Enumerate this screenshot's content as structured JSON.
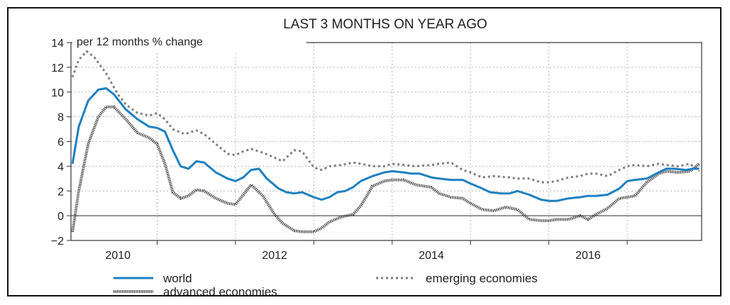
{
  "chart_data": {
    "type": "line",
    "title": "LAST 3 MONTHS ON YEAR AGO",
    "ylabel": "per 12 months % change",
    "xlabel": "",
    "ylim": [
      -2,
      14
    ],
    "yticks": [
      14,
      12,
      10,
      8,
      6,
      4,
      2,
      0,
      -2
    ],
    "ytick_labels": [
      "14",
      "12",
      "10",
      "8",
      "6",
      "4",
      "2",
      "0",
      "−2"
    ],
    "xlim": [
      2009.9,
      2017.95
    ],
    "xtick_labels": [
      "2010",
      "2012",
      "2014",
      "2016"
    ],
    "xtick_positions": [
      2010.5,
      2012.5,
      2014.5,
      2016.5
    ],
    "year_boundaries": [
      2011,
      2012,
      2013,
      2014,
      2015,
      2016,
      2017
    ],
    "grid": true,
    "zero_line": true,
    "legend_position": "bottom",
    "series": [
      {
        "name": "world",
        "style": "solid",
        "color": "#1f7fc1",
        "x": [
          2009.92,
          2010.0,
          2010.12,
          2010.25,
          2010.35,
          2010.45,
          2010.6,
          2010.75,
          2010.9,
          2011.0,
          2011.1,
          2011.2,
          2011.3,
          2011.4,
          2011.5,
          2011.6,
          2011.75,
          2011.9,
          2012.0,
          2012.1,
          2012.2,
          2012.3,
          2012.4,
          2012.55,
          2012.65,
          2012.75,
          2012.85,
          2013.0,
          2013.1,
          2013.2,
          2013.3,
          2013.4,
          2013.5,
          2013.6,
          2013.75,
          2013.9,
          2014.0,
          2014.15,
          2014.25,
          2014.35,
          2014.5,
          2014.6,
          2014.75,
          2014.9,
          2015.0,
          2015.15,
          2015.25,
          2015.4,
          2015.5,
          2015.6,
          2015.75,
          2015.9,
          2016.0,
          2016.1,
          2016.25,
          2016.4,
          2016.5,
          2016.6,
          2016.75,
          2016.9,
          2017.0,
          2017.1,
          2017.25,
          2017.4,
          2017.5,
          2017.6,
          2017.75,
          2017.85,
          2017.92
        ],
        "y": [
          4.2,
          7.2,
          9.3,
          10.2,
          10.3,
          9.8,
          8.6,
          7.8,
          7.2,
          7.1,
          6.8,
          5.3,
          4.0,
          3.8,
          4.4,
          4.3,
          3.5,
          3.0,
          2.8,
          3.1,
          3.7,
          3.8,
          3.0,
          2.2,
          1.9,
          1.8,
          1.9,
          1.5,
          1.3,
          1.5,
          1.9,
          2.0,
          2.3,
          2.8,
          3.2,
          3.5,
          3.6,
          3.5,
          3.4,
          3.4,
          3.1,
          3.0,
          2.9,
          2.9,
          2.6,
          2.2,
          1.9,
          1.8,
          1.8,
          2.0,
          1.7,
          1.3,
          1.2,
          1.2,
          1.4,
          1.5,
          1.6,
          1.6,
          1.7,
          2.2,
          2.8,
          2.9,
          3.0,
          3.5,
          3.8,
          3.8,
          3.7,
          3.8,
          3.8
        ]
      },
      {
        "name": "emerging economies",
        "style": "dashed",
        "color": "#7f7f7f",
        "x": [
          2009.92,
          2010.0,
          2010.1,
          2010.2,
          2010.35,
          2010.5,
          2010.6,
          2010.75,
          2010.9,
          2011.0,
          2011.1,
          2011.2,
          2011.35,
          2011.5,
          2011.6,
          2011.75,
          2011.9,
          2012.0,
          2012.1,
          2012.2,
          2012.35,
          2012.5,
          2012.6,
          2012.75,
          2012.85,
          2013.0,
          2013.1,
          2013.2,
          2013.35,
          2013.5,
          2013.6,
          2013.75,
          2013.9,
          2014.0,
          2014.15,
          2014.3,
          2014.5,
          2014.6,
          2014.75,
          2014.9,
          2015.0,
          2015.15,
          2015.3,
          2015.5,
          2015.6,
          2015.75,
          2015.9,
          2016.0,
          2016.1,
          2016.25,
          2016.4,
          2016.5,
          2016.6,
          2016.75,
          2016.9,
          2017.0,
          2017.1,
          2017.25,
          2017.4,
          2017.5,
          2017.65,
          2017.8,
          2017.92
        ],
        "y": [
          11.2,
          12.6,
          13.3,
          12.8,
          11.5,
          9.8,
          9.0,
          8.3,
          8.1,
          8.3,
          7.8,
          7.0,
          6.6,
          6.9,
          6.6,
          5.8,
          5.0,
          4.9,
          5.2,
          5.4,
          5.1,
          4.7,
          4.4,
          5.3,
          5.2,
          3.9,
          3.7,
          4.0,
          4.1,
          4.3,
          4.2,
          4.0,
          4.0,
          4.2,
          4.1,
          4.0,
          4.1,
          4.2,
          4.3,
          3.7,
          3.5,
          3.1,
          3.2,
          3.1,
          3.0,
          3.0,
          2.7,
          2.7,
          2.8,
          3.1,
          3.2,
          3.4,
          3.4,
          3.2,
          3.7,
          4.0,
          4.1,
          4.0,
          4.2,
          4.1,
          4.0,
          4.2,
          3.6
        ]
      },
      {
        "name": "advanced economies",
        "style": "dotted",
        "color": "#333333",
        "x": [
          2009.92,
          2010.0,
          2010.12,
          2010.25,
          2010.35,
          2010.45,
          2010.6,
          2010.75,
          2010.9,
          2011.0,
          2011.1,
          2011.2,
          2011.3,
          2011.4,
          2011.5,
          2011.6,
          2011.75,
          2011.9,
          2012.0,
          2012.1,
          2012.2,
          2012.35,
          2012.5,
          2012.6,
          2012.75,
          2012.85,
          2013.0,
          2013.1,
          2013.2,
          2013.35,
          2013.5,
          2013.6,
          2013.75,
          2013.9,
          2014.0,
          2014.15,
          2014.3,
          2014.5,
          2014.6,
          2014.75,
          2014.9,
          2015.0,
          2015.15,
          2015.3,
          2015.45,
          2015.6,
          2015.75,
          2015.9,
          2016.0,
          2016.1,
          2016.25,
          2016.4,
          2016.5,
          2016.6,
          2016.75,
          2016.9,
          2017.0,
          2017.1,
          2017.25,
          2017.4,
          2017.5,
          2017.65,
          2017.8,
          2017.92
        ],
        "y": [
          -1.3,
          2.0,
          5.8,
          8.0,
          8.8,
          8.8,
          7.8,
          6.7,
          6.3,
          5.8,
          4.2,
          1.9,
          1.4,
          1.6,
          2.1,
          2.0,
          1.4,
          1.0,
          0.9,
          1.7,
          2.5,
          1.6,
          0.1,
          -0.6,
          -1.2,
          -1.3,
          -1.3,
          -1.0,
          -0.5,
          -0.1,
          0.1,
          0.8,
          2.4,
          2.8,
          2.9,
          2.9,
          2.5,
          2.3,
          1.8,
          1.5,
          1.4,
          1.0,
          0.5,
          0.4,
          0.7,
          0.5,
          -0.3,
          -0.4,
          -0.4,
          -0.3,
          -0.3,
          0.0,
          -0.3,
          0.1,
          0.6,
          1.4,
          1.5,
          1.6,
          2.7,
          3.4,
          3.6,
          3.5,
          3.6,
          4.2
        ]
      }
    ]
  }
}
